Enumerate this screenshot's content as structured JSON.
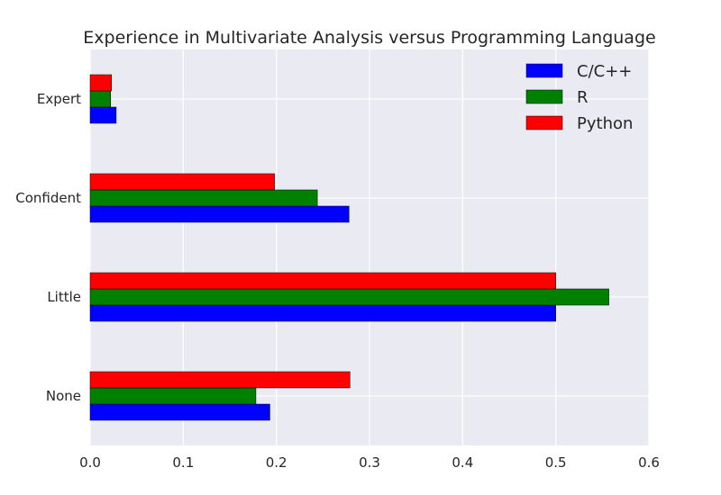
{
  "chart_data": {
    "type": "bar",
    "orientation": "horizontal",
    "title": "Experience in Multivariate Analysis versus Programming Language",
    "xlabel": "",
    "ylabel": "",
    "categories": [
      "None",
      "Little",
      "Confident",
      "Expert"
    ],
    "series": [
      {
        "name": "C/C++",
        "color": "#0000ff",
        "values": [
          0.193,
          0.5,
          0.278,
          0.028
        ]
      },
      {
        "name": "R",
        "color": "#008000",
        "values": [
          0.178,
          0.557,
          0.244,
          0.022
        ]
      },
      {
        "name": "Python",
        "color": "#ff0000",
        "values": [
          0.279,
          0.5,
          0.198,
          0.023
        ]
      }
    ],
    "xlim": [
      0,
      0.6
    ],
    "xticks": [
      "0.0",
      "0.1",
      "0.2",
      "0.3",
      "0.4",
      "0.5",
      "0.6"
    ],
    "grid": true,
    "legend_position": "top-right",
    "background_color": "#eaeaf2",
    "grid_color": "#ffffff"
  }
}
